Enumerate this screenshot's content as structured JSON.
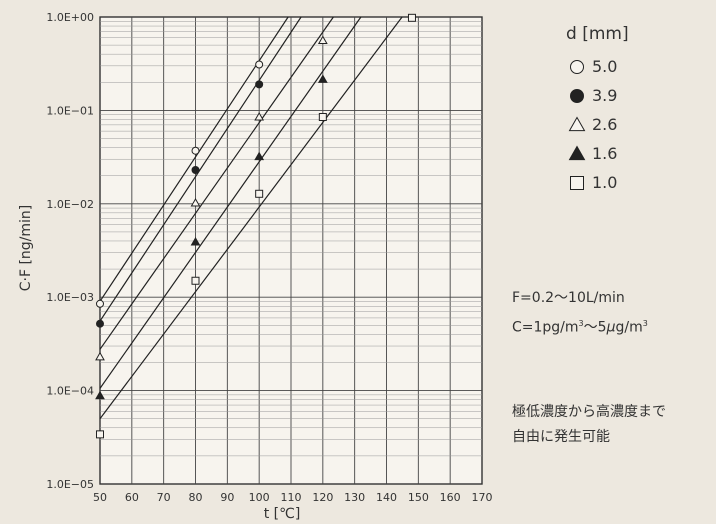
{
  "chart_data": {
    "type": "scatter",
    "xlabel": "t [℃]",
    "ylabel": "C·F [ng/min]",
    "xlim": [
      50,
      170
    ],
    "ylim": [
      1e-05,
      1
    ],
    "yscale": "log",
    "grid": true,
    "xticks": [
      "50",
      "60",
      "70",
      "80",
      "90",
      "100",
      "110",
      "120",
      "130",
      "140",
      "150",
      "160",
      "170"
    ],
    "yticks": [
      "1.0E+00",
      "1.0E−01",
      "1.0E−02",
      "1.0E−03",
      "1.0E−04",
      "1.0E−05"
    ],
    "legend_title": "d [mm]",
    "legend_position": "right",
    "series": [
      {
        "name": "5.0",
        "marker": "circle-open",
        "x": [
          50,
          80,
          100
        ],
        "y": [
          0.00085,
          0.037,
          0.31
        ]
      },
      {
        "name": "3.9",
        "marker": "circle-filled",
        "x": [
          50,
          80,
          100
        ],
        "y": [
          0.00052,
          0.023,
          0.19
        ]
      },
      {
        "name": "2.6",
        "marker": "triangle-open",
        "x": [
          50,
          80,
          100,
          120
        ],
        "y": [
          0.00023,
          0.0102,
          0.085,
          0.56
        ]
      },
      {
        "name": "1.6",
        "marker": "triangle-filled",
        "x": [
          50,
          80,
          100,
          120
        ],
        "y": [
          8.8e-05,
          0.0039,
          0.032,
          0.215
        ]
      },
      {
        "name": "1.0",
        "marker": "square-open",
        "x": [
          50,
          80,
          100,
          120,
          148
        ],
        "y": [
          3.4e-05,
          0.0015,
          0.0128,
          0.085,
          0.98
        ]
      }
    ],
    "annotations": {
      "flow_line": "F=0.2〜10L/min",
      "conc_line_prefix": "C=1pg/m",
      "conc_line_mid": "〜5",
      "conc_line_mu": "μ",
      "conc_line_unit": "g/m",
      "conc_sup": "3",
      "note_line1": "極低濃度から高濃度まで",
      "note_line2": "自由に発生可能"
    }
  }
}
